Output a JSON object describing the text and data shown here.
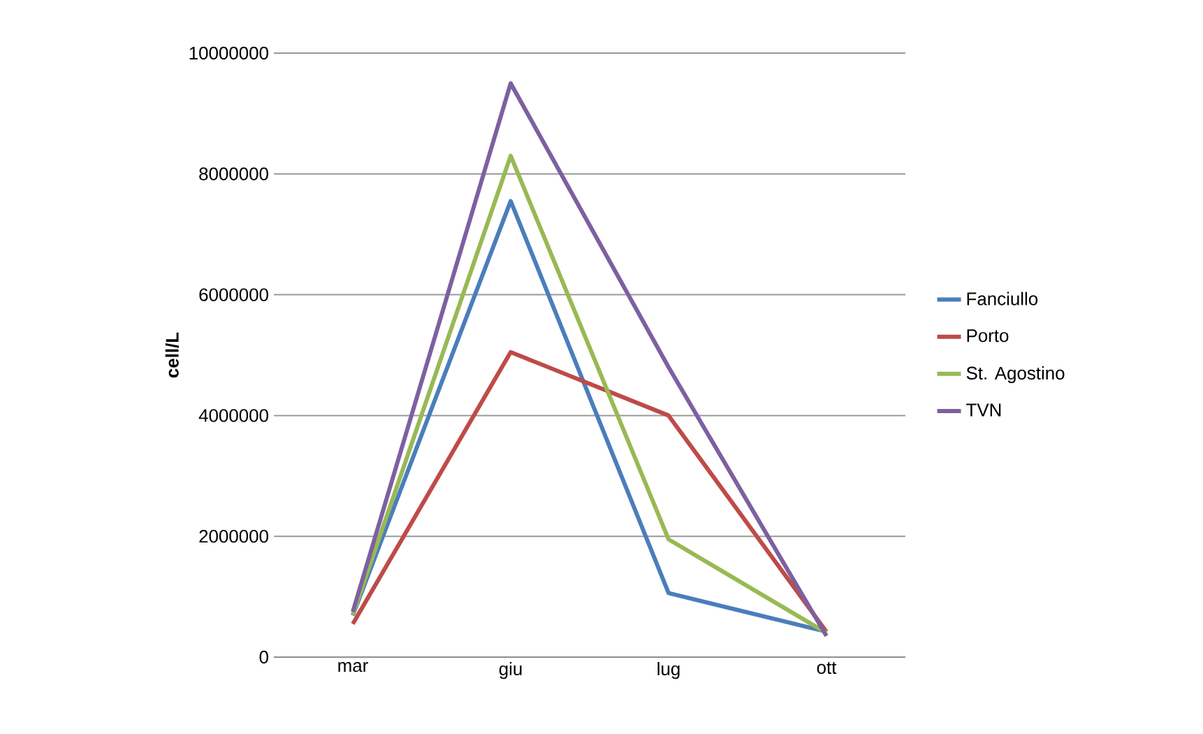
{
  "chart_data": {
    "type": "line",
    "ylabel": "cell/L",
    "categories": [
      "mar",
      "giu",
      "lug",
      "ott"
    ],
    "series": [
      {
        "name": "Fanciullo",
        "color": "#4a7ebb",
        "values": [
          690000,
          7550000,
          1060000,
          420000
        ]
      },
      {
        "name": "Porto",
        "color": "#be4b48",
        "values": [
          550000,
          5050000,
          4000000,
          420000
        ]
      },
      {
        "name": "St. Agostino",
        "color": "#98b954",
        "values": [
          700000,
          8300000,
          1950000,
          400000
        ]
      },
      {
        "name": "TVN",
        "color": "#7d60a0",
        "values": [
          750000,
          9500000,
          4800000,
          350000
        ]
      }
    ],
    "ylim": [
      0,
      10000000
    ],
    "yticks": [
      0,
      2000000,
      4000000,
      6000000,
      8000000,
      10000000
    ],
    "grid": "y",
    "legend": "right",
    "marker": "none",
    "line_style": "solid"
  }
}
